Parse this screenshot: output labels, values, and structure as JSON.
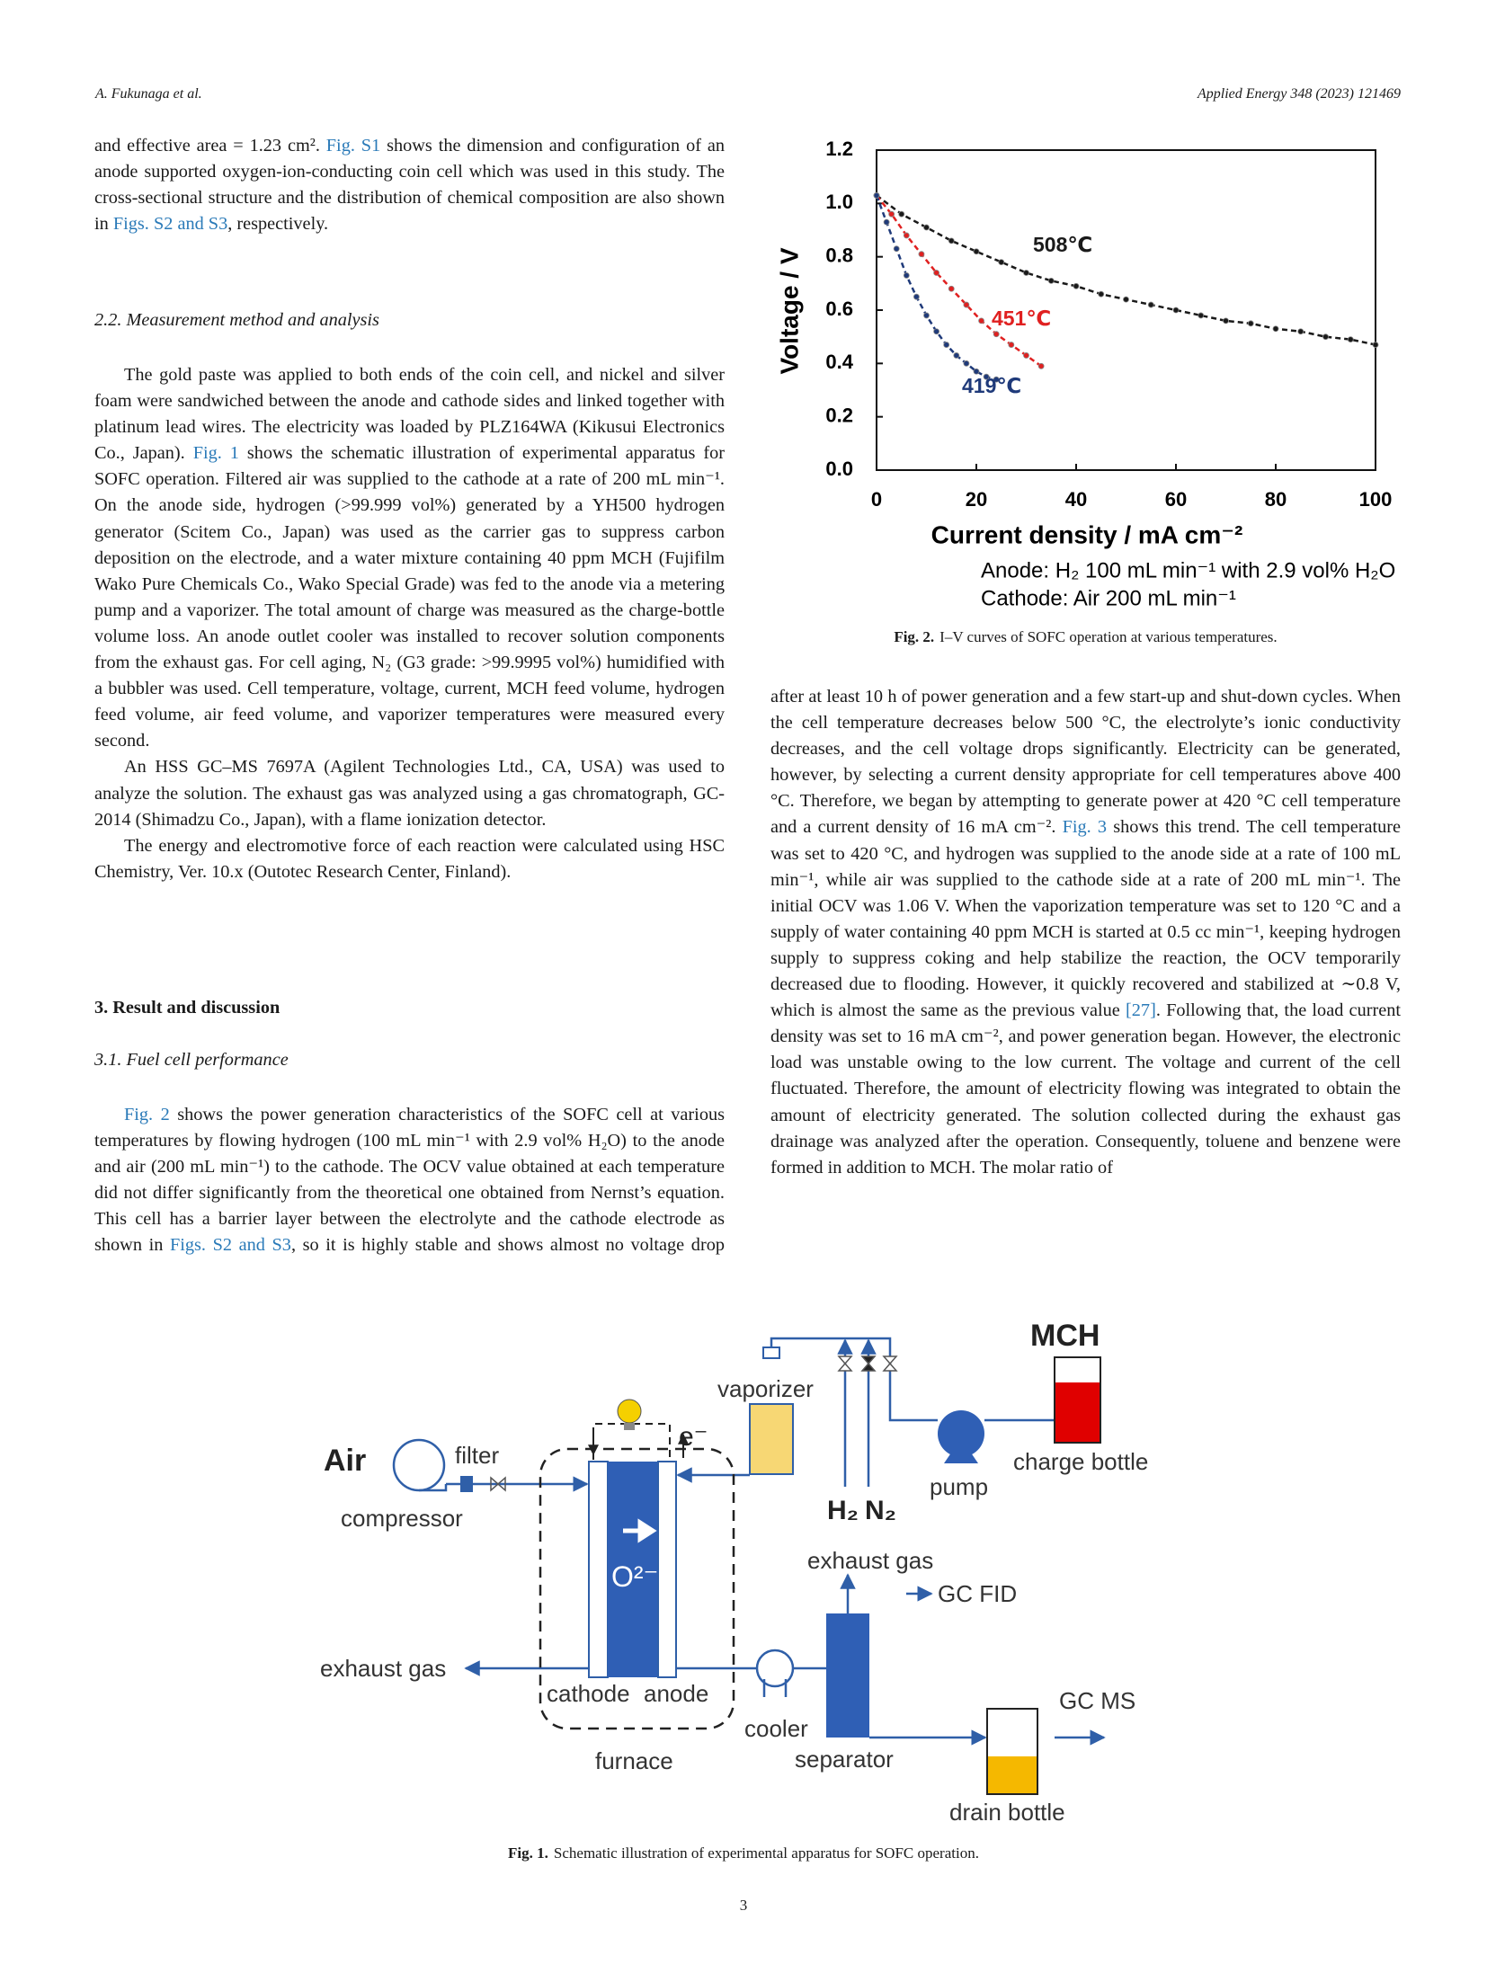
{
  "header": {
    "author": "A. Fukunaga et al.",
    "journal": "Applied Energy 348 (2023) 121469"
  },
  "left_column": {
    "paragraph_1": [
      "and effective area = 1.23 cm². ",
      {
        "link": "Fig. S1"
      },
      " shows the dimension and configuration of an anode supported oxygen-ion-conducting coin cell which was used in this study. The cross-sectional structure and the distribution of chemical composition are also shown in ",
      {
        "link": "Figs. S2 and S3"
      },
      ", respectively."
    ],
    "heading_2_2": "2.2. Measurement method and analysis",
    "paragraphs_2_2": [
      [
        "The gold paste was applied to both ends of the coin cell, and nickel and silver foam were sandwiched between the anode and cathode sides and linked together with platinum lead wires. The electricity was loaded by PLZ164WA (Kikusui Electronics Co., Japan). ",
        {
          "link": "Fig. 1"
        },
        " shows the schematic illustration of experimental apparatus for SOFC operation. Filtered air was supplied to the cathode at a rate of 200 mL min⁻¹. On the anode side, hydrogen (>99.999 vol%) generated by a YH500 hydrogen generator (Scitem Co., Japan) was used as the carrier gas to suppress carbon deposition on the electrode, and a water mixture containing 40 ppm MCH (Fujifilm Wako Pure Chemicals Co., Wako Special Grade) was fed to the anode via a metering pump and a vaporizer. The total amount of charge was measured as the charge-bottle volume loss. An anode outlet cooler was installed to recover solution components from the exhaust gas. For cell aging, N₂ (G3 grade: >99.9995 vol%) humidified with a bubbler was used. Cell temperature, voltage, current, MCH feed volume, hydrogen feed volume, air feed volume, and vaporizer temperatures were measured every second."
      ],
      [
        "An HSS GC–MS 7697A (Agilent Technologies Ltd., CA, USA) was used to analyze the solution. The exhaust gas was analyzed using a gas chromatograph, GC-2014 (Shimadzu Co., Japan), with a flame ionization detector."
      ],
      [
        "The energy and electromotive force of each reaction were calculated using HSC Chemistry, Ver. 10.x (Outotec Research Center, Finland)."
      ]
    ],
    "heading_3": "3. Result and discussion",
    "heading_3_1": "3.1. Fuel cell performance",
    "paragraph_3_1": [
      {
        "link": "Fig. 2"
      },
      " shows the power generation characteristics of the SOFC cell at various temperatures by flowing hydrogen (100 mL min⁻¹ with 2.9 vol% H₂O) to the anode and air (200 mL min⁻¹) to the cathode. The OCV value obtained at each temperature did not differ significantly from the theoretical one obtained from Nernst’s equation. This cell has a barrier layer between the electrolyte and the cathode electrode as shown in ",
      {
        "link": "Figs. S2 and S3"
      },
      ", so it is highly stable and shows almost no voltage drop"
    ]
  },
  "right_column": {
    "paragraph": [
      "after at least 10 h of power generation and a few start-up and shut-down cycles. When the cell temperature decreases below 500 °C, the electrolyte’s ionic conductivity decreases, and the cell voltage drops significantly. Electricity can be generated, however, by selecting a current density appropriate for cell temperatures above 400 °C. Therefore, we began by attempting to generate power at 420 °C cell temperature and a current density of 16 mA cm⁻². ",
      {
        "link": "Fig. 3"
      },
      " shows this trend. The cell temperature was set to 420 °C, and hydrogen was supplied to the anode side at a rate of 100 mL min⁻¹, while air was supplied to the cathode side at a rate of 200 mL min⁻¹. The initial OCV was 1.06 V. When the vaporization temperature was set to 120 °C and a supply of water containing 40 ppm MCH is started at 0.5 cc min⁻¹, keeping hydrogen supply to suppress coking and help stabilize the reaction, the OCV temporarily decreased due to flooding. However, it quickly recovered and stabilized at ∼0.8 V, which is almost the same as the previous value ",
      {
        "link": "[27]"
      },
      ". Following that, the load current density was set to 16 mA cm⁻², and power generation began. However, the electronic load was unstable owing to the low current. The voltage and current of the cell fluctuated. Therefore, the amount of electricity flowing was integrated to obtain the amount of electricity generated. The solution collected during the exhaust gas drainage was analyzed after the operation. Consequently, toluene and benzene were formed in addition to MCH. The molar ratio of"
    ]
  },
  "figure_2": {
    "chart_data": {
      "type": "line",
      "xlabel": "Current density / mA cm⁻²",
      "ylabel": "Voltage / V",
      "notes": [
        "Anode: H₂ 100 mL min⁻¹ with 2.9 vol% H₂O",
        "Cathode: Air 200 mL min⁻¹"
      ],
      "xlim": [
        0,
        100
      ],
      "ylim": [
        0,
        1.2
      ],
      "xticks": [
        0,
        20,
        40,
        60,
        80,
        100
      ],
      "yticks": [
        {
          "value": 0,
          "label": "0.0"
        },
        0.2,
        0.4,
        0.6,
        0.8,
        {
          "value": 1,
          "label": "1.0"
        },
        1.2
      ],
      "series": [
        {
          "name": "508℃",
          "color": "#1a1a1a",
          "x": [
            0,
            5,
            10,
            15,
            20,
            25,
            30,
            35,
            40,
            45,
            50,
            55,
            60,
            65,
            70,
            75,
            80,
            85,
            90,
            95,
            100
          ],
          "values": [
            1.03,
            0.96,
            0.91,
            0.86,
            0.82,
            0.78,
            0.74,
            0.71,
            0.69,
            0.66,
            0.64,
            0.62,
            0.6,
            0.58,
            0.56,
            0.55,
            0.53,
            0.52,
            0.5,
            0.49,
            0.47
          ]
        },
        {
          "name": "451℃",
          "color": "#e02020",
          "x": [
            0,
            3,
            6,
            9,
            12,
            15,
            18,
            21,
            24,
            27,
            30,
            33
          ],
          "values": [
            1.03,
            0.96,
            0.88,
            0.81,
            0.74,
            0.68,
            0.62,
            0.56,
            0.51,
            0.47,
            0.43,
            0.39
          ]
        },
        {
          "name": "419℃",
          "color": "#1f3a7a",
          "x": [
            0,
            2,
            4,
            6,
            8,
            10,
            12,
            14,
            16,
            18,
            20,
            22,
            24
          ],
          "values": [
            1.03,
            0.93,
            0.83,
            0.73,
            0.65,
            0.58,
            0.52,
            0.47,
            0.43,
            0.4,
            0.37,
            0.35,
            0.34
          ]
        }
      ]
    },
    "caption": {
      "label": "Fig. 2.",
      "text": "I–V curves of SOFC operation at various temperatures."
    }
  },
  "figure_1": {
    "labels": {
      "air": "Air",
      "compressor": "compressor",
      "filter": "filter",
      "electron": "e⁻",
      "oxide_ion": "O²⁻",
      "exhaust_gas_cathode": "exhaust gas",
      "cathode": "cathode",
      "anode": "anode",
      "furnace": "furnace",
      "vaporizer": "vaporizer",
      "hydrogen": "H₂",
      "nitrogen": "N₂",
      "pump": "pump",
      "charge_bottle": "charge  bottle",
      "mch": "MCH",
      "exhaust_gas_anode": "exhaust gas",
      "gc_fid": "GC FID",
      "cooler": "cooler",
      "separator": "separator",
      "gc_ms": "GC MS",
      "drain_bottle": "drain bottle"
    },
    "caption": {
      "label": "Fig. 1.",
      "text": "Schematic illustration of experimental apparatus for SOFC operation."
    }
  },
  "page_number": "3"
}
